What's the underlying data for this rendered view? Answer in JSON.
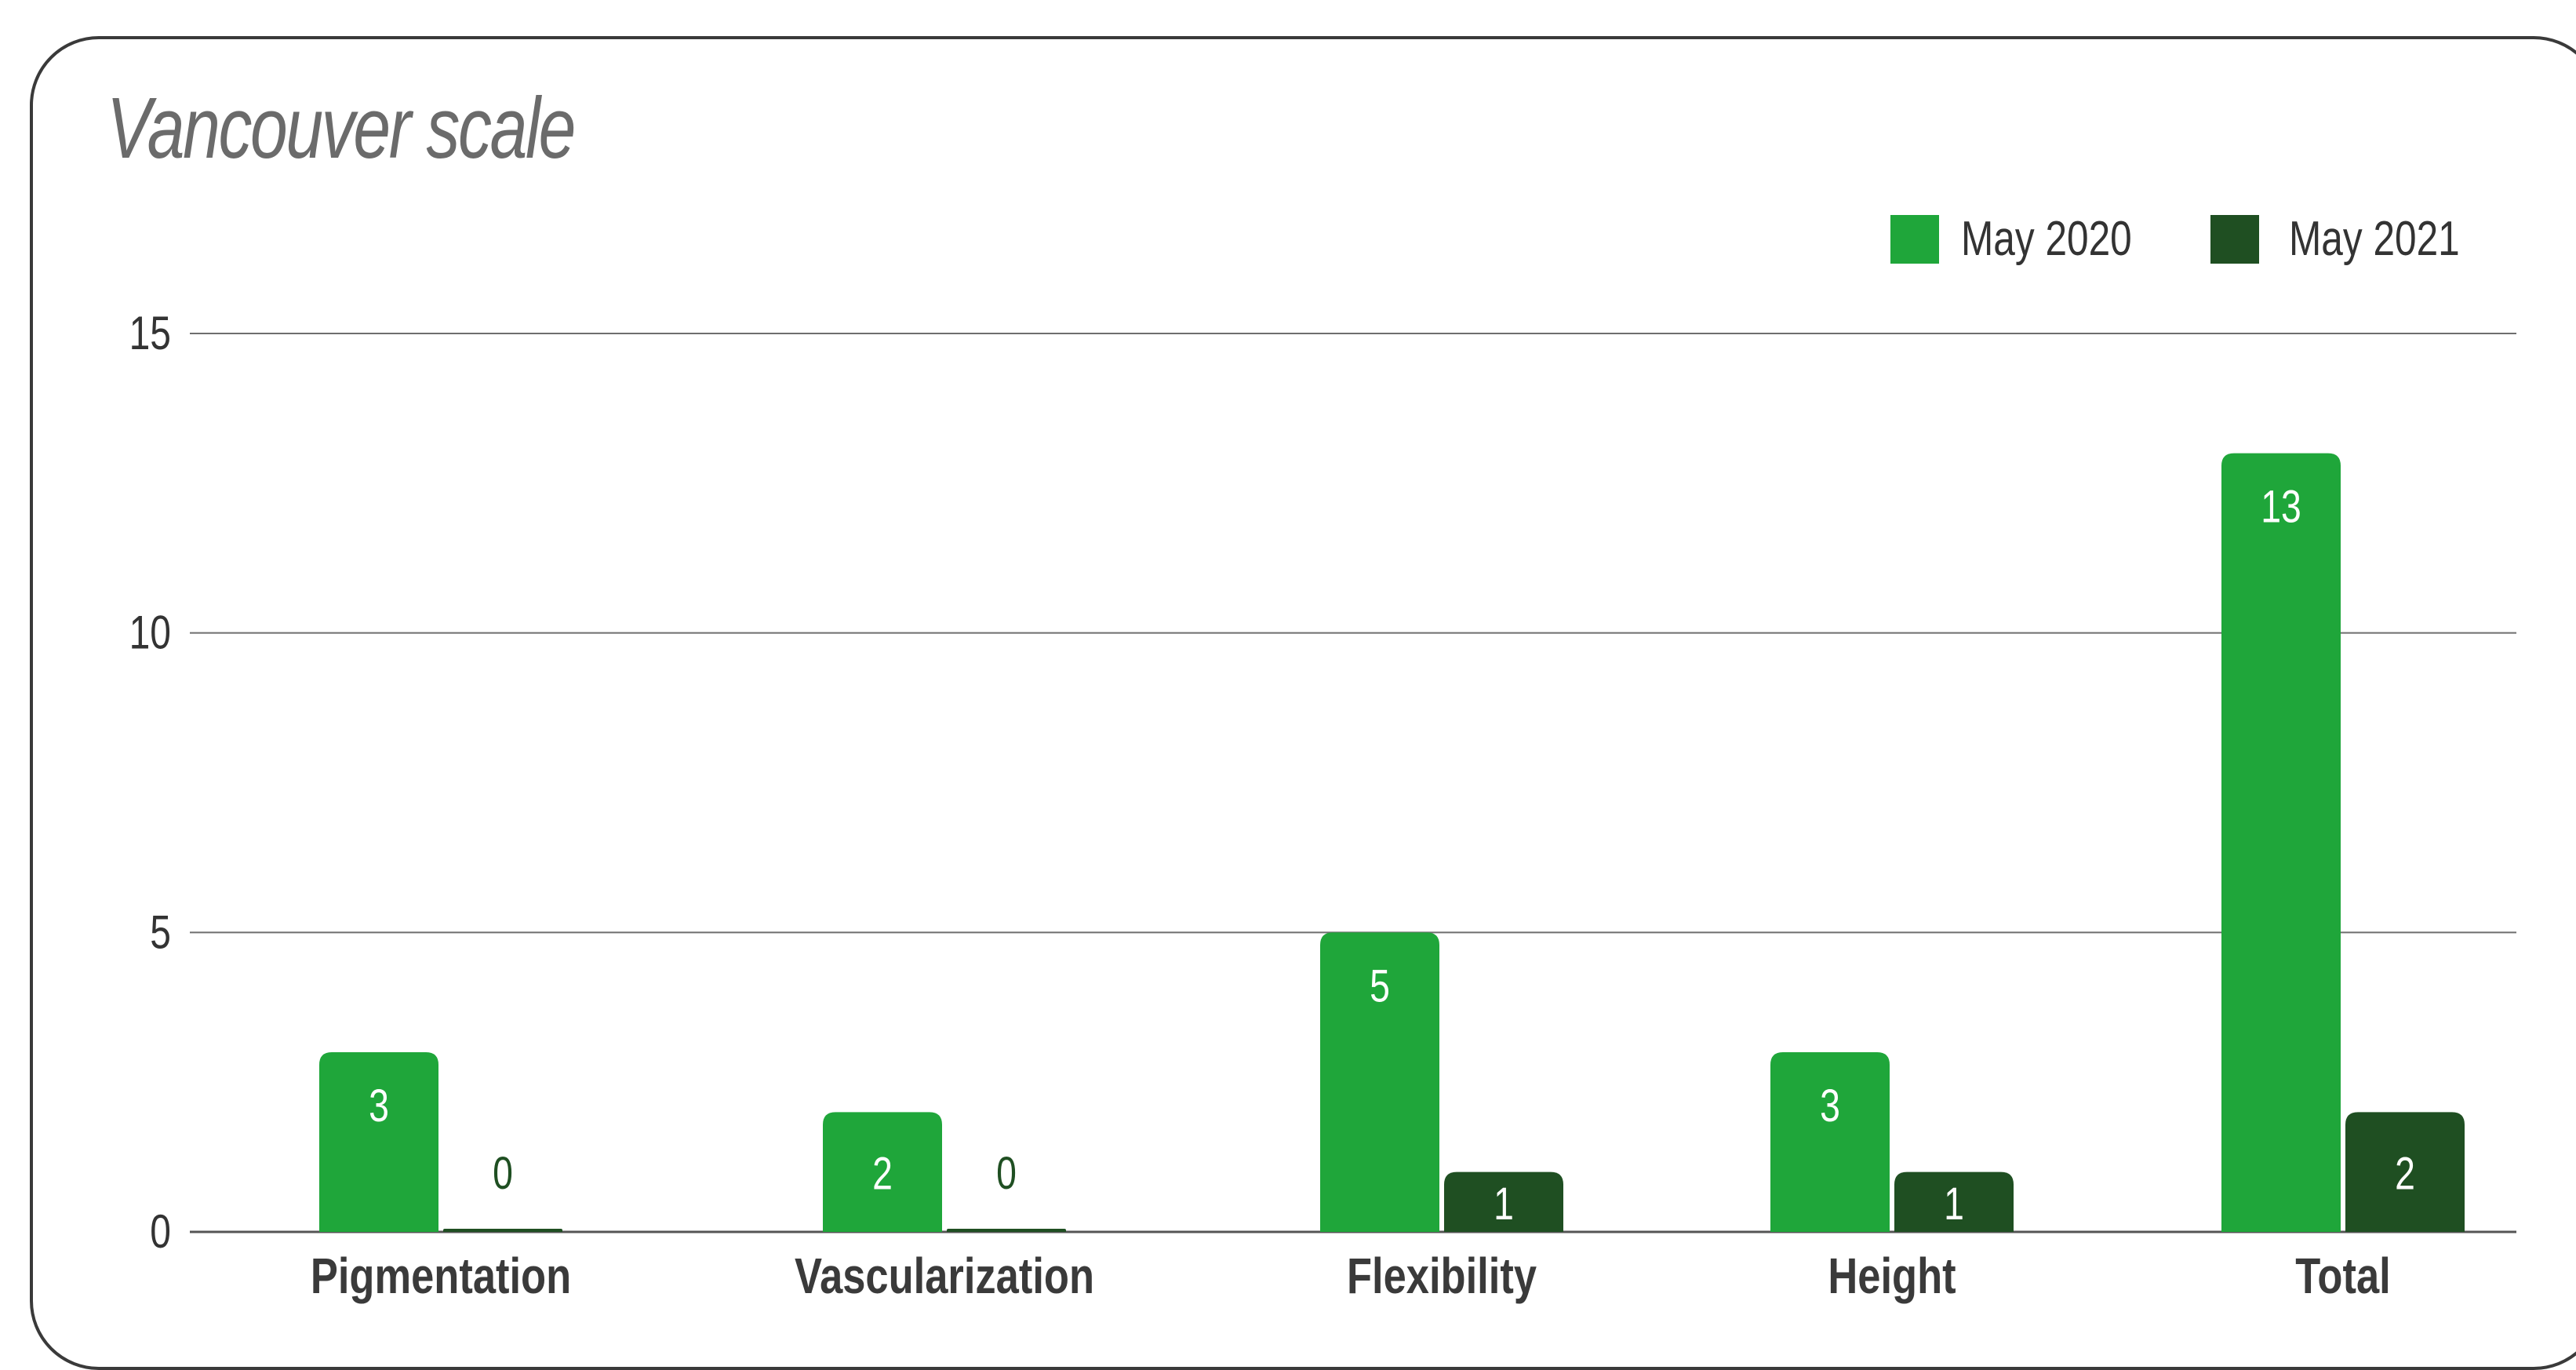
{
  "chart_data": {
    "type": "bar",
    "title": "Vancouver scale",
    "xlabel": "",
    "ylabel": "",
    "categories": [
      "Pigmentation",
      "Vascularization",
      "Flexibility",
      "Height",
      "Total"
    ],
    "series": [
      {
        "name": "May 2020",
        "values": [
          3,
          2,
          5,
          3,
          13
        ],
        "color": "#1fa63a"
      },
      {
        "name": "May 2021",
        "values": [
          0,
          0,
          1,
          1,
          2
        ],
        "color": "#1f4f22"
      }
    ],
    "ylim": [
      0,
      15
    ],
    "yticks": [
      0,
      5,
      10,
      15
    ],
    "grid": true,
    "legend": "top-right",
    "data_labels": true
  }
}
